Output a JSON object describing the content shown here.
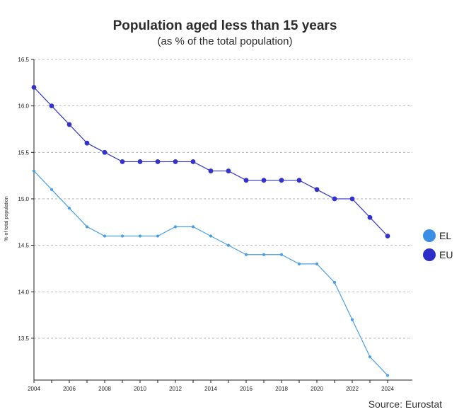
{
  "chart_data": {
    "type": "line",
    "title": "Population aged less than 15 years",
    "subtitle": "(as % of the total population)",
    "ylabel": "% of total population",
    "xlabel": "",
    "source": "Source: Eurostat",
    "x": [
      2004,
      2005,
      2006,
      2007,
      2008,
      2009,
      2010,
      2011,
      2012,
      2013,
      2014,
      2015,
      2016,
      2017,
      2018,
      2019,
      2020,
      2021,
      2022,
      2023,
      2024
    ],
    "x_ticks": [
      "2004",
      "2006",
      "2008",
      "2010",
      "2012",
      "2014",
      "2016",
      "2018",
      "2020",
      "2022",
      "2024"
    ],
    "y_ticks": [
      "13.5",
      "14.0",
      "14.5",
      "15.0",
      "15.5",
      "16.0",
      "16.5"
    ],
    "ylim": [
      13.05,
      16.5
    ],
    "xlim": [
      2004,
      2025.4
    ],
    "grid": true,
    "legend_position": "right",
    "series": [
      {
        "name": "EL",
        "color": "#4a9fe8",
        "legend_color": "#3a8ee6",
        "values": [
          15.3,
          15.1,
          14.9,
          14.7,
          14.6,
          14.6,
          14.6,
          14.6,
          14.7,
          14.7,
          14.6,
          14.5,
          14.4,
          14.4,
          14.4,
          14.3,
          14.3,
          14.1,
          13.7,
          13.3,
          13.1
        ]
      },
      {
        "name": "EU",
        "color": "#3333cc",
        "legend_color": "#2d2dc8",
        "values": [
          16.2,
          16.0,
          15.8,
          15.6,
          15.5,
          15.4,
          15.4,
          15.4,
          15.4,
          15.4,
          15.3,
          15.3,
          15.2,
          15.2,
          15.2,
          15.2,
          15.1,
          15.0,
          15.0,
          14.8,
          14.6
        ]
      }
    ]
  }
}
